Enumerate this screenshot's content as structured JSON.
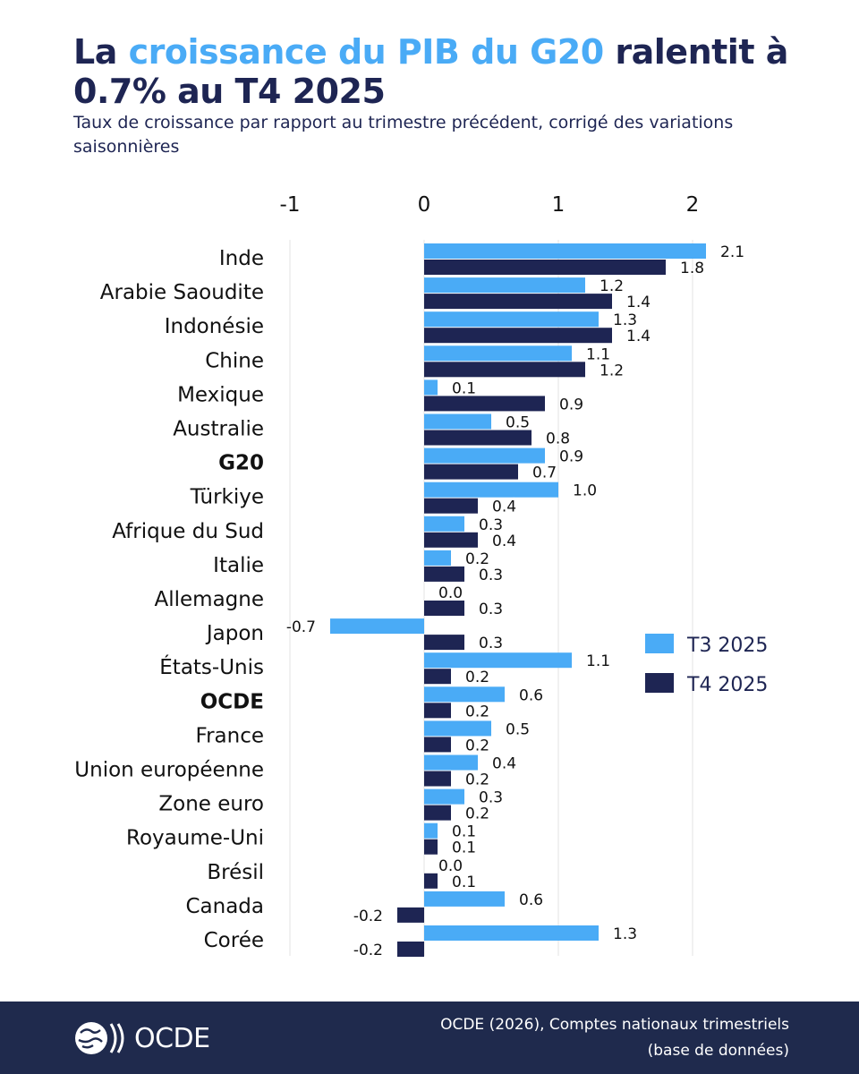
{
  "title": {
    "part1": "La ",
    "highlight": "croissance du PIB du G20",
    "part2": " ralentit à 0.7% au T4 2025"
  },
  "subtitle": "Taux de croissance par rapport au trimestre précédent, corrigé des variations saisonnières",
  "footer": {
    "logo_text": "OCDE",
    "source_line1": "OCDE (2026), Comptes nationaux trimestriels",
    "source_line2": "(base de données)"
  },
  "colors": {
    "t3": "#4aabf6",
    "t4": "#1e2553",
    "title_dark": "#1e2553",
    "footer_bg": "#1f2a4d",
    "grid": "#e3e3e3"
  },
  "chart_data": {
    "type": "bar",
    "orientation": "horizontal",
    "xlim": [
      -1,
      2.3
    ],
    "xticks": [
      "-1",
      "0",
      "1",
      "2"
    ],
    "tick_values": [
      -1,
      0,
      1,
      2
    ],
    "grid": true,
    "legend_position": "right",
    "categories": [
      "Inde",
      "Arabie Saoudite",
      "Indonésie",
      "Chine",
      "Mexique",
      "Australie",
      "G20",
      "Türkiye",
      "Afrique du Sud",
      "Italie",
      "Allemagne",
      "Japon",
      "États-Unis",
      "OCDE",
      "France",
      "Union européenne",
      "Zone euro",
      "Royaume-Uni",
      "Brésil",
      "Canada",
      "Corée"
    ],
    "bold_categories": [
      "G20",
      "OCDE"
    ],
    "series": [
      {
        "name": "T3 2025",
        "values": [
          2.1,
          1.2,
          1.3,
          1.1,
          0.1,
          0.5,
          0.9,
          1.0,
          0.3,
          0.2,
          0.0,
          -0.7,
          1.1,
          0.6,
          0.5,
          0.4,
          0.3,
          0.1,
          0.0,
          0.6,
          1.3
        ],
        "labels": [
          "2.1",
          "1.2",
          "1.3",
          "1.1",
          "0.1",
          "0.5",
          "0.9",
          "1.0",
          "0.3",
          "0.2",
          "0.0",
          "-0.7",
          "1.1",
          "0.6",
          "0.5",
          "0.4",
          "0.3",
          "0.1",
          "0.0",
          "0.6",
          "1.3"
        ]
      },
      {
        "name": "T4 2025",
        "values": [
          1.8,
          1.4,
          1.4,
          1.2,
          0.9,
          0.8,
          0.7,
          0.4,
          0.4,
          0.3,
          0.3,
          0.3,
          0.2,
          0.2,
          0.2,
          0.2,
          0.2,
          0.1,
          0.1,
          -0.2,
          -0.2
        ],
        "labels": [
          "1.8",
          "1.4",
          "1.4",
          "1.2",
          "0.9",
          "0.8",
          "0.7",
          "0.4",
          "0.4",
          "0.3",
          "0.3",
          "0.3",
          "0.2",
          "0.2",
          "0.2",
          "0.2",
          "0.2",
          "0.1",
          "0.1",
          "-0.2",
          "-0.2"
        ]
      }
    ]
  }
}
